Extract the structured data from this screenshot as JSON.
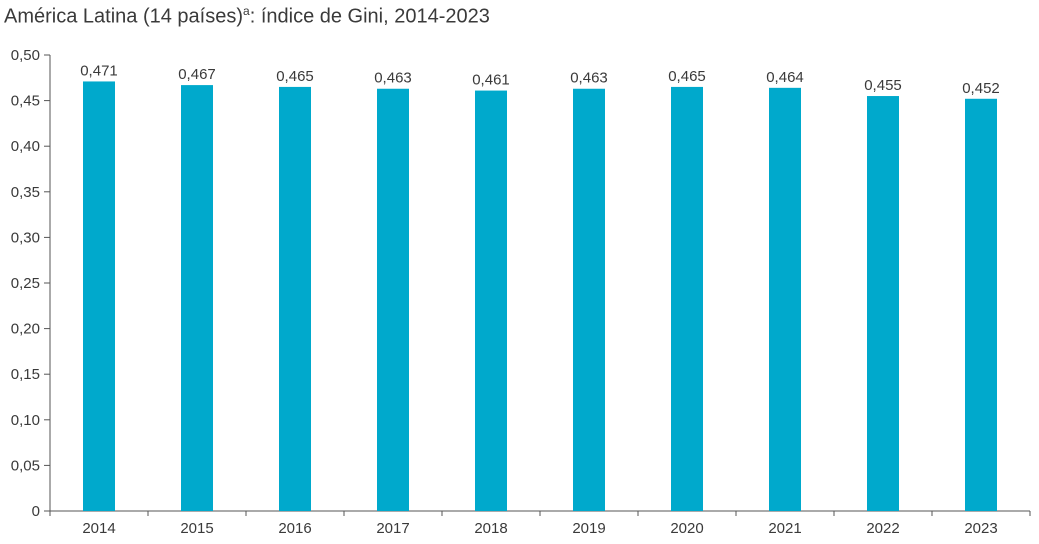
{
  "chart_data": {
    "type": "bar",
    "title_main": "América Latina (14 países)",
    "title_sup": "a",
    "title_rest": ": índice de Gini, 2014-2023",
    "categories": [
      "2014",
      "2015",
      "2016",
      "2017",
      "2018",
      "2019",
      "2020",
      "2021",
      "2022",
      "2023"
    ],
    "values": [
      0.471,
      0.467,
      0.465,
      0.463,
      0.461,
      0.463,
      0.465,
      0.464,
      0.455,
      0.452
    ],
    "value_labels": [
      "0,471",
      "0,467",
      "0,465",
      "0,463",
      "0,461",
      "0,463",
      "0,465",
      "0,464",
      "0,455",
      "0,452"
    ],
    "y_ticks": [
      0,
      0.05,
      0.1,
      0.15,
      0.2,
      0.25,
      0.3,
      0.35,
      0.4,
      0.45,
      0.5
    ],
    "y_tick_labels": [
      "0",
      "0,05",
      "0,10",
      "0,15",
      "0,20",
      "0,25",
      "0,30",
      "0,35",
      "0,40",
      "0,45",
      "0,50"
    ],
    "ylim": [
      0,
      0.5
    ],
    "xlabel": "",
    "ylabel": "",
    "grid": false,
    "legend": "none",
    "bar_color": "#00a9cc",
    "axis_color": "#555555"
  }
}
